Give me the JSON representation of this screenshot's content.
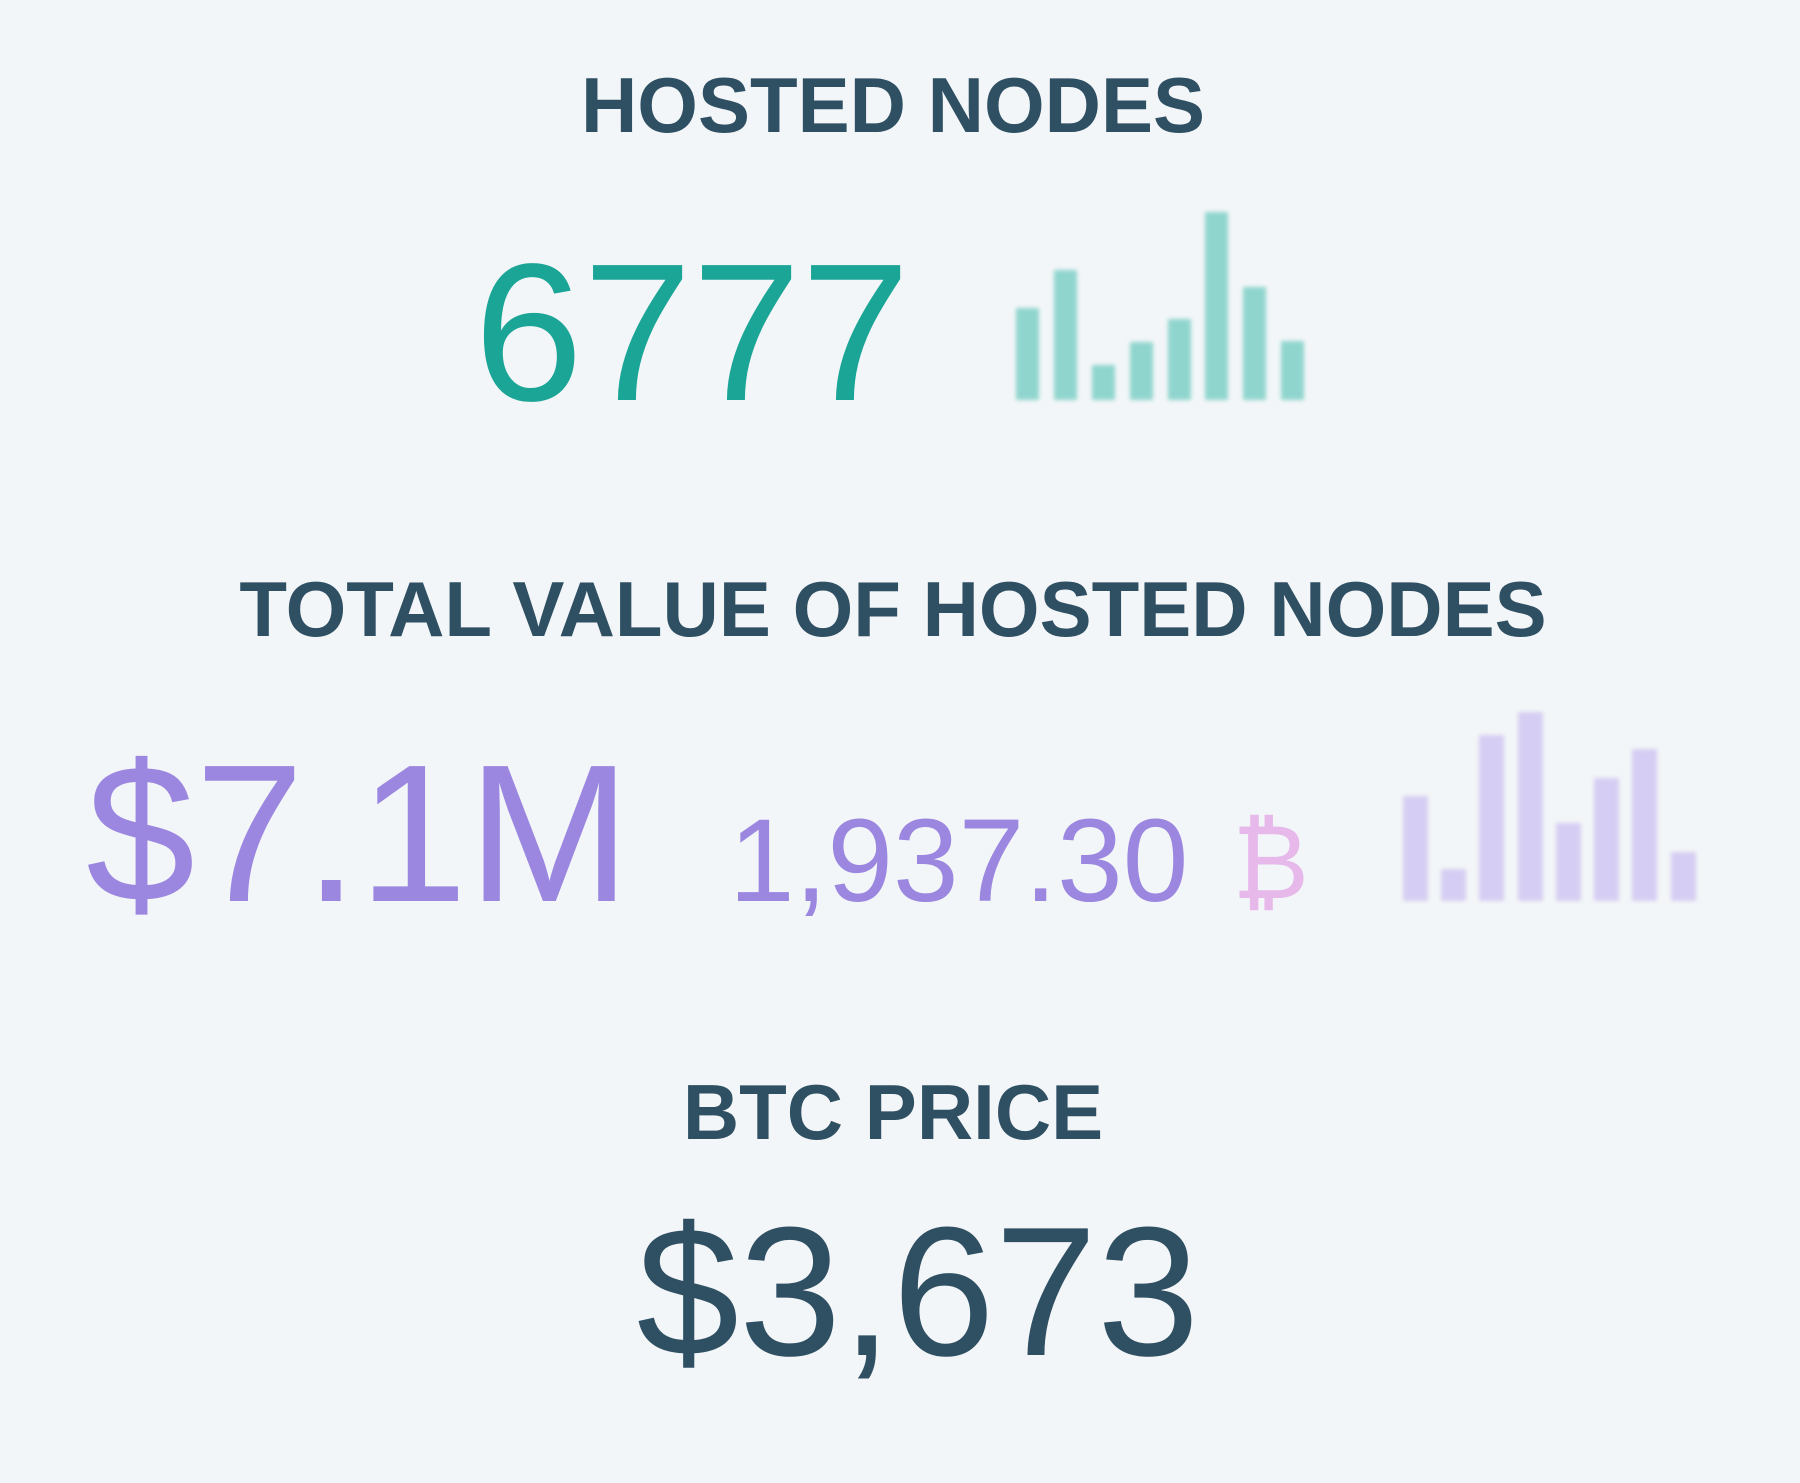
{
  "sections": [
    {
      "title": "HOSTED NODES",
      "value": "6777"
    },
    {
      "title": "TOTAL VALUE OF HOSTED NODES",
      "value": "$7.1M",
      "btc_value": "1,937.30",
      "btc_symbol": "₿"
    },
    {
      "title": "BTC PRICE",
      "value": "$3,673"
    }
  ]
}
